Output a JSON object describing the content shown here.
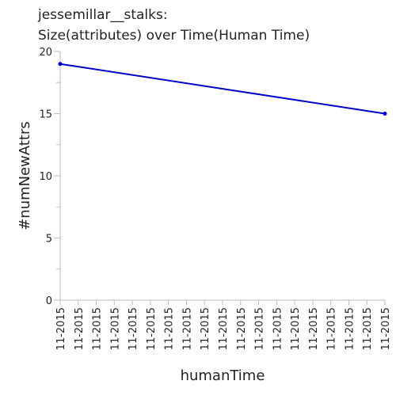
{
  "chart_data": {
    "type": "line",
    "title_line1": "jessemillar__stalks:",
    "title_line2": "Size(attributes) over Time(Human Time)",
    "xlabel": "humanTime",
    "ylabel": "#numNewAttrs",
    "categories": [
      "11-2015",
      "11-2015",
      "11-2015",
      "11-2015",
      "11-2015",
      "11-2015",
      "11-2015",
      "11-2015",
      "11-2015",
      "11-2015",
      "11-2015",
      "11-2015",
      "11-2015",
      "11-2015",
      "11-2015",
      "11-2015",
      "11-2015",
      "11-2015",
      "11-2015"
    ],
    "ylim": [
      0,
      20
    ],
    "yticks": [
      0,
      5,
      10,
      15,
      20
    ],
    "grid": false,
    "series": [
      {
        "points": [
          {
            "x": 0,
            "y": 19
          },
          {
            "x": 18,
            "y": 15
          }
        ],
        "color": "#0000cc"
      }
    ],
    "axis_color": "#bbbbbb"
  }
}
